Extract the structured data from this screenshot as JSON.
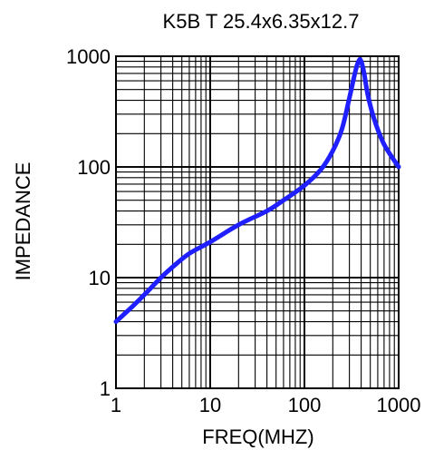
{
  "chart_data": {
    "type": "line",
    "title": "K5B T 25.4x6.35x12.7",
    "xlabel": "FREQ(MHZ)",
    "ylabel": "IMPEDANCE",
    "x_scale": "log",
    "y_scale": "log",
    "xlim": [
      1,
      1000
    ],
    "ylim": [
      1,
      1000
    ],
    "grid": true,
    "x_ticks": [
      "1",
      "10",
      "100",
      "1000"
    ],
    "y_ticks": [
      "1",
      "10",
      "100",
      "1000"
    ],
    "series": [
      {
        "color": "#1f1fff",
        "x": [
          1,
          1.5,
          2,
          3,
          4,
          6,
          10,
          20,
          40,
          60,
          100,
          150,
          200,
          250,
          300,
          350,
          380,
          400,
          430,
          470,
          550,
          700,
          1000
        ],
        "y": [
          4,
          5.5,
          7,
          10,
          12.5,
          16.5,
          21,
          30,
          40,
          50,
          68,
          95,
          140,
          220,
          420,
          750,
          920,
          900,
          700,
          450,
          270,
          160,
          100
        ]
      }
    ]
  }
}
